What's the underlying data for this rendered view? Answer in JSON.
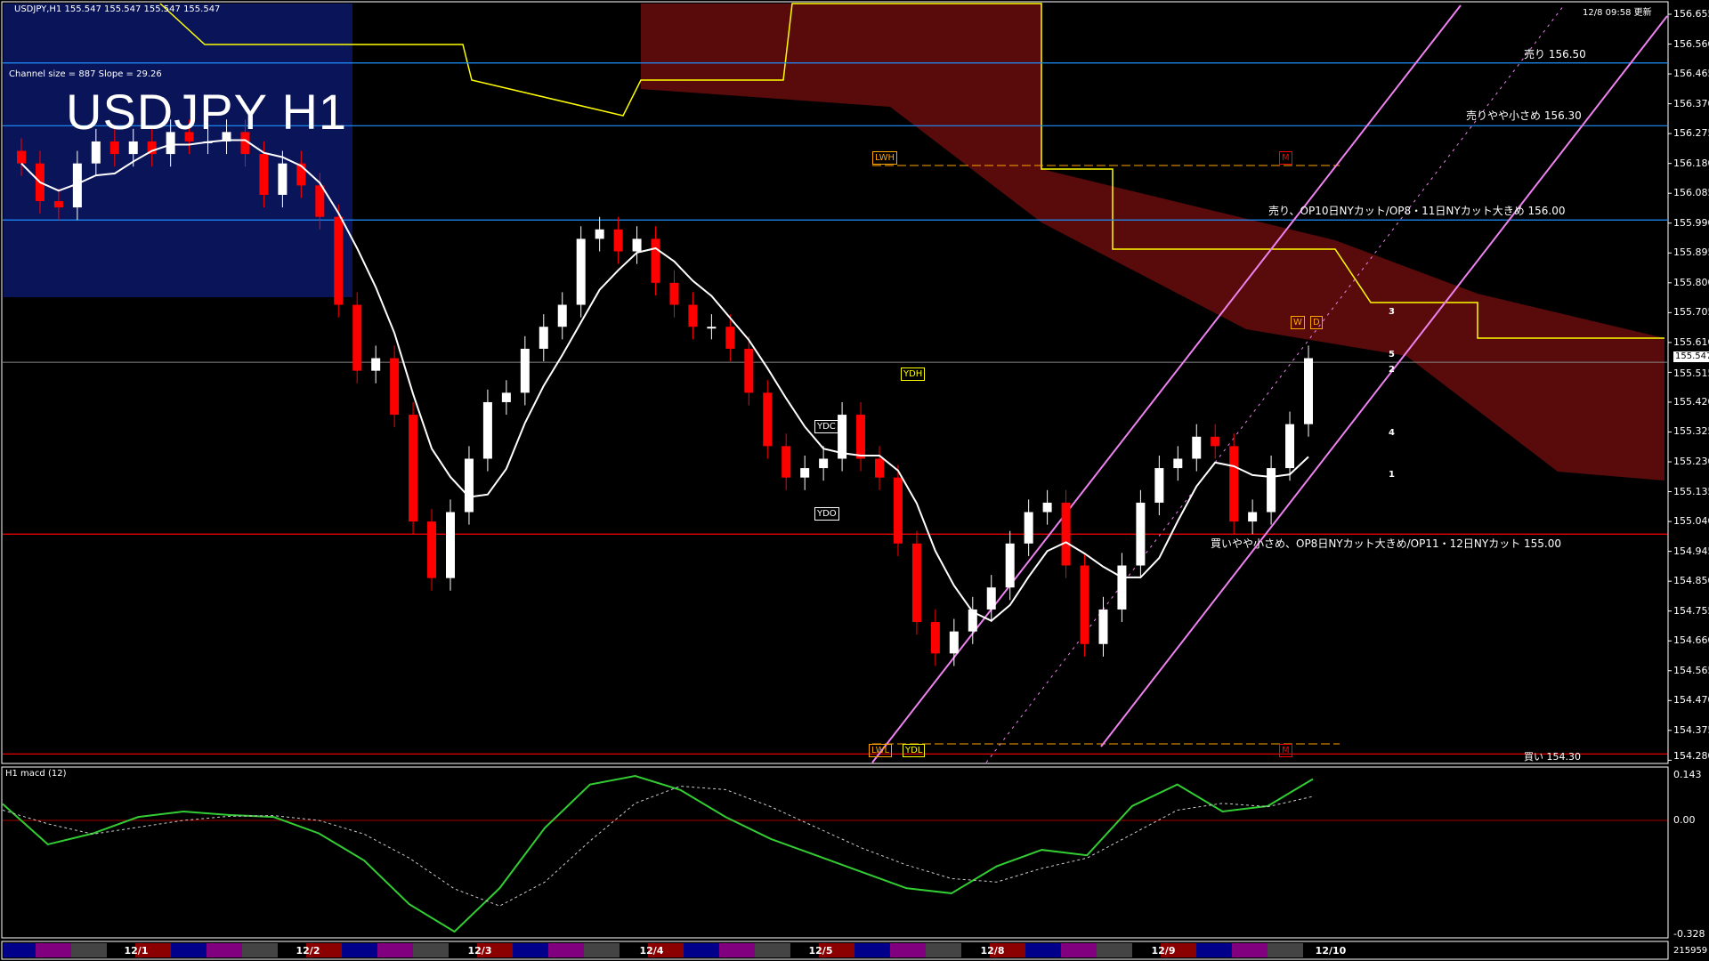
{
  "header": {
    "symbol_info": "USDJPY,H1  155.547 155.547 155.547 155.547",
    "title": "USDJPY H1",
    "channel_info": "Channel size = 887 Slope = 29.26",
    "updated": "12/8 09:58 更新"
  },
  "annotations": {
    "sell": "売り 156.50",
    "sell_small": "売りやや小さめ 156.30",
    "sell_op": "売り、OP10日NYカット/OP8・11日NYカット大きめ 156.00",
    "buy_op": "買いやや小さめ、OP8日NYカット大きめ/OP11・12日NYカット 155.00",
    "buy": "買い 154.30"
  },
  "level_labels": [
    "LWH",
    "YDH",
    "YDC",
    "YDO",
    "LWL",
    "YDL",
    "W",
    "D",
    "M"
  ],
  "projection_labels": [
    "3",
    "5",
    "2",
    "4",
    "1"
  ],
  "macd": {
    "label": "H1  macd (12)",
    "ticks": [
      "0.143",
      "0.00",
      "-0.328"
    ]
  },
  "volume_label": "215959",
  "colors": {
    "up": "#ffffff",
    "down": "#ff0000",
    "channel": "#ee82ee",
    "sell_line": "#1e90ff",
    "buy_line": "#ff0000",
    "macd": "#32cd32",
    "signal": "#ff69b4",
    "cloud_up": "#1e3cff",
    "cloud_down": "#ff2020"
  },
  "chart_data": {
    "type": "candlestick",
    "title": "USDJPY H1",
    "ylim": [
      154.28,
      156.655
    ],
    "yticks": [
      "156.655",
      "156.560",
      "156.465",
      "156.370",
      "156.275",
      "156.180",
      "156.085",
      "155.990",
      "155.895",
      "155.800",
      "155.705",
      "155.610",
      "155.515",
      "155.420",
      "155.325",
      "155.230",
      "155.135",
      "155.040",
      "154.945",
      "154.850",
      "154.755",
      "154.660",
      "154.565",
      "154.470",
      "154.375",
      "154.280"
    ],
    "current_price": "155.547",
    "x_labels": [
      "12/1",
      "12/2",
      "12/3",
      "12/4",
      "12/5",
      "12/8",
      "12/9",
      "12/10"
    ],
    "closes": [
      156.18,
      156.06,
      156.04,
      156.18,
      156.25,
      156.21,
      156.25,
      156.21,
      156.28,
      156.25,
      156.25,
      156.28,
      156.21,
      156.08,
      156.18,
      156.11,
      156.01,
      155.73,
      155.52,
      155.56,
      155.38,
      155.04,
      154.86,
      155.07,
      155.24,
      155.42,
      155.45,
      155.59,
      155.66,
      155.73,
      155.94,
      155.97,
      155.9,
      155.94,
      155.8,
      155.73,
      155.66,
      155.66,
      155.59,
      155.45,
      155.28,
      155.18,
      155.21,
      155.24,
      155.38,
      155.24,
      155.18,
      154.97,
      154.72,
      154.62,
      154.69,
      154.76,
      154.83,
      154.97,
      155.07,
      155.1,
      154.9,
      154.65,
      154.76,
      154.9,
      155.1,
      155.21,
      155.24,
      155.31,
      155.28,
      155.04,
      155.07,
      155.21,
      155.35,
      155.56
    ],
    "horizontal_levels": [
      {
        "label": "売り 156.50",
        "value": 156.5
      },
      {
        "label": "売りやや小さめ 156.30",
        "value": 156.3
      },
      {
        "label": "売り、OP10日NYカット/OP8・11日NYカット大きめ 156.00",
        "value": 156.0
      },
      {
        "label": "買いやや小さめ、OP8日NYカット大きめ/OP11・12日NYカット 155.00",
        "value": 155.0
      },
      {
        "label": "買い 154.30",
        "value": 154.3
      }
    ],
    "macd_series": {
      "main": [
        0.048,
        -0.07,
        -0.038,
        0.01,
        0.026,
        0.016,
        0.01,
        -0.038,
        -0.117,
        -0.245,
        -0.325,
        -0.198,
        -0.022,
        0.105,
        0.13,
        0.089,
        0.01,
        -0.054,
        -0.102,
        -0.15,
        -0.198,
        -0.213,
        -0.134,
        -0.086,
        -0.102,
        0.042,
        0.105,
        0.026,
        0.042,
        0.121
      ],
      "signal": [
        0.03,
        -0.01,
        -0.04,
        -0.02,
        0.0,
        0.012,
        0.014,
        0.0,
        -0.04,
        -0.11,
        -0.2,
        -0.25,
        -0.18,
        -0.06,
        0.05,
        0.1,
        0.09,
        0.04,
        -0.02,
        -0.08,
        -0.13,
        -0.17,
        -0.18,
        -0.14,
        -0.11,
        -0.04,
        0.03,
        0.05,
        0.04,
        0.07
      ]
    }
  }
}
